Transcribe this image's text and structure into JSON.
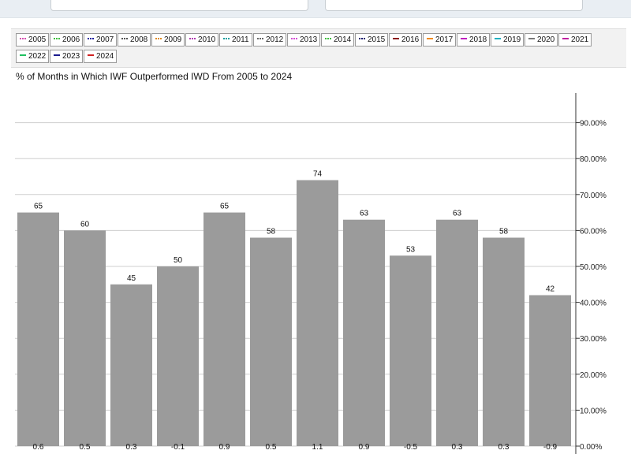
{
  "legend": {
    "items": [
      {
        "label": "2005",
        "color": "#d64fb0",
        "style": "dotted"
      },
      {
        "label": "2006",
        "color": "#3fbf3f",
        "style": "dotted"
      },
      {
        "label": "2007",
        "color": "#1a1a9e",
        "style": "dotted"
      },
      {
        "label": "2008",
        "color": "#555555",
        "style": "dotted"
      },
      {
        "label": "2009",
        "color": "#e08a1e",
        "style": "dotted"
      },
      {
        "label": "2010",
        "color": "#b03ab0",
        "style": "dotted"
      },
      {
        "label": "2011",
        "color": "#1aa0a0",
        "style": "dotted"
      },
      {
        "label": "2012",
        "color": "#666666",
        "style": "dotted"
      },
      {
        "label": "2013",
        "color": "#d64fd6",
        "style": "dotted"
      },
      {
        "label": "2014",
        "color": "#3fbf3f",
        "style": "dotted"
      },
      {
        "label": "2015",
        "color": "#1a1a6e",
        "style": "dotted"
      },
      {
        "label": "2016",
        "color": "#8b1a1a",
        "style": "solid"
      },
      {
        "label": "2017",
        "color": "#f08a1e",
        "style": "solid"
      },
      {
        "label": "2018",
        "color": "#c020c0",
        "style": "solid"
      },
      {
        "label": "2019",
        "color": "#20b0c0",
        "style": "solid"
      },
      {
        "label": "2020",
        "color": "#777777",
        "style": "solid"
      },
      {
        "label": "2021",
        "color": "#c020a0",
        "style": "solid"
      },
      {
        "label": "2022",
        "color": "#20c060",
        "style": "solid"
      },
      {
        "label": "2023",
        "color": "#1a1a8e",
        "style": "solid"
      },
      {
        "label": "2024",
        "color": "#d02020",
        "style": "solid"
      }
    ]
  },
  "chart_data": {
    "type": "bar",
    "title": "% of Months in Which IWF Outperformed IWD From 2005 to 2024",
    "values": [
      65,
      60,
      45,
      50,
      65,
      58,
      74,
      63,
      53,
      63,
      58,
      42
    ],
    "value_labels": [
      "65",
      "60",
      "45",
      "50",
      "65",
      "58",
      "74",
      "63",
      "53",
      "63",
      "58",
      "42"
    ],
    "bottom_labels": [
      "0.6",
      "0.5",
      "0.3",
      "-0.1",
      "0.9",
      "0.5",
      "1.1",
      "0.9",
      "-0.5",
      "0.3",
      "0.3",
      "-0.9"
    ],
    "ylim": [
      0,
      100
    ],
    "yticks": [
      0,
      10,
      20,
      30,
      40,
      50,
      60,
      70,
      80,
      90
    ],
    "ytick_labels": [
      "0.00%",
      "10.00%",
      "20.00%",
      "30.00%",
      "40.00%",
      "50.00%",
      "60.00%",
      "70.00%",
      "80.00%",
      "90.00%"
    ],
    "axis_side": "right",
    "grid": true,
    "bar_color": "#9b9b9b"
  }
}
